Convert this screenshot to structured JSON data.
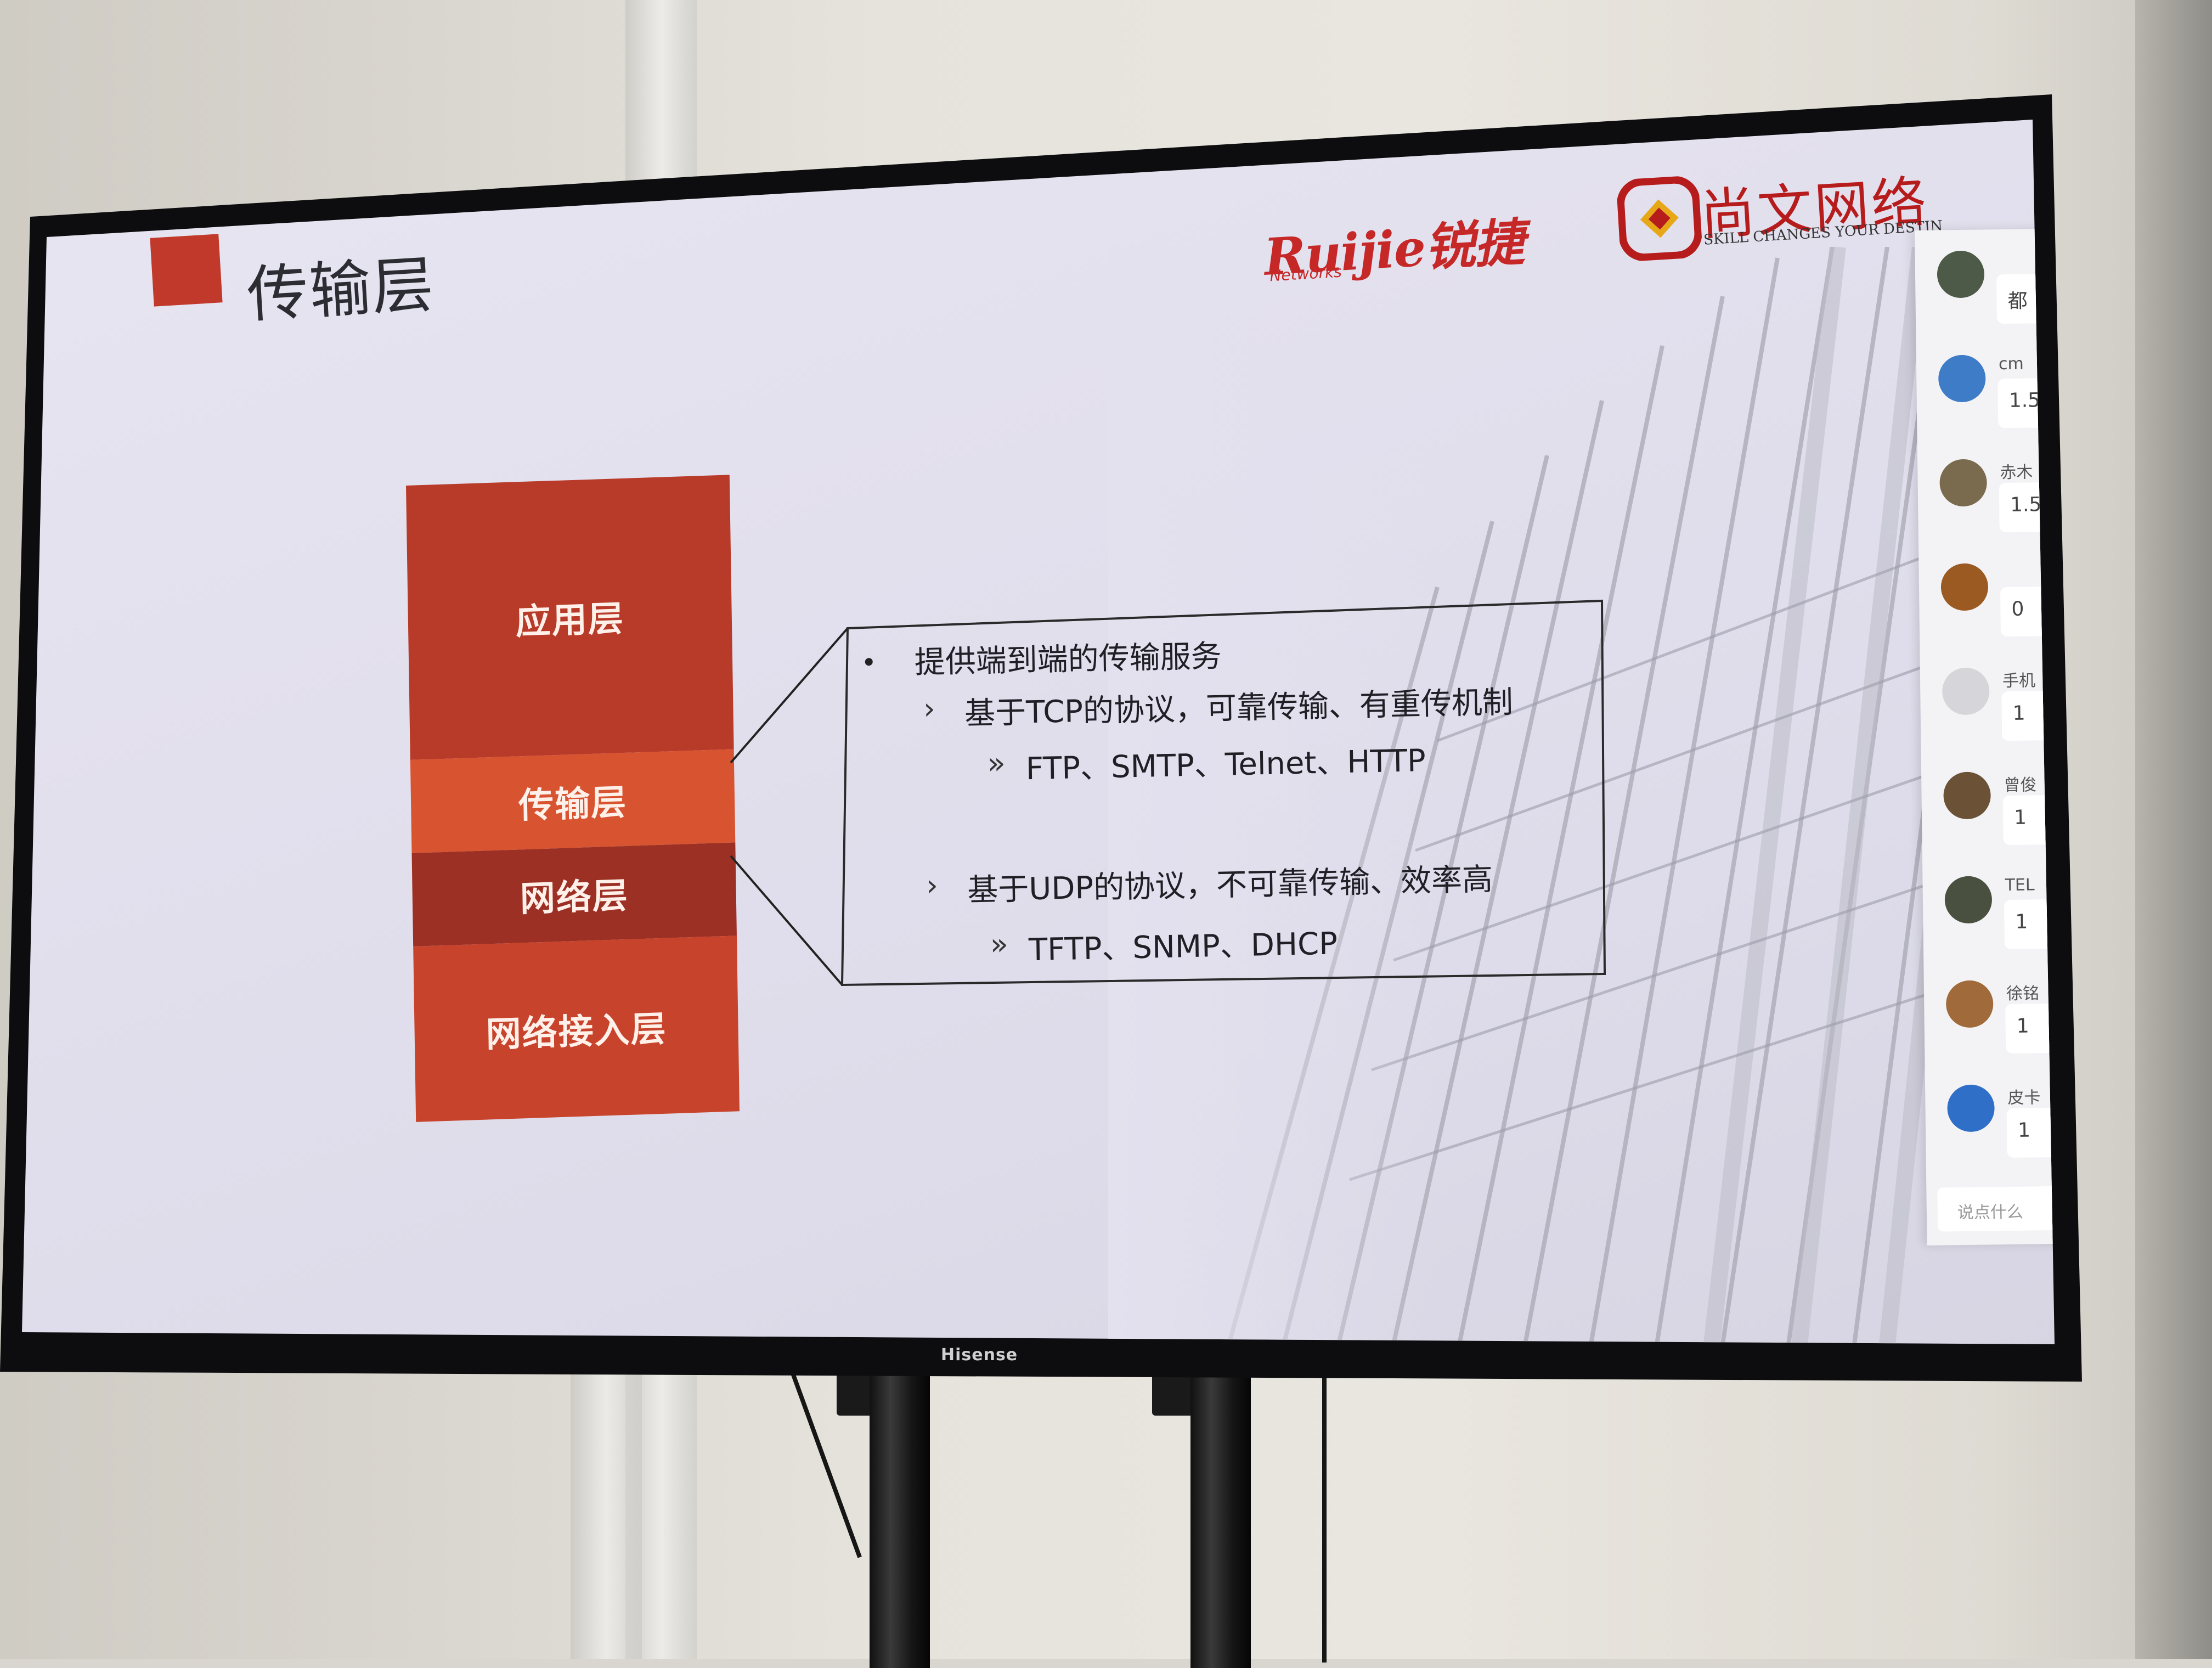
{
  "slide": {
    "title": "传输层",
    "logos": {
      "ruijie_main": "Ruijie锐捷",
      "ruijie_sub": "Networks",
      "shangwen_name": "尚文网络",
      "shangwen_tagline": "SKILL CHANGES YOUR DESTIN"
    },
    "layers": [
      {
        "label": "应用层"
      },
      {
        "label": "传输层"
      },
      {
        "label": "网络层"
      },
      {
        "label": "网络接入层"
      }
    ],
    "info": {
      "bullet": "提供端到端的传输服务",
      "tcp_line": "基于TCP的协议，可靠传输、有重传机制",
      "tcp_examples": "FTP、SMTP、Telnet、HTTP",
      "udp_line": "基于UDP的协议，不可靠传输、效率高",
      "udp_examples": "TFTP、SNMP、DHCP",
      "sub_marker": "›",
      "subsub_marker": "»"
    }
  },
  "chat": {
    "messages": [
      {
        "name": "",
        "text": "都"
      },
      {
        "name": "cm",
        "text": "1.5"
      },
      {
        "name": "赤木",
        "text": "1.5"
      },
      {
        "name": "",
        "text": "0"
      },
      {
        "name": "手机",
        "text": "1"
      },
      {
        "name": "曾俊",
        "text": "1"
      },
      {
        "name": "TEL",
        "text": "1"
      },
      {
        "name": "徐铭",
        "text": "1"
      },
      {
        "name": "皮卡",
        "text": "1"
      }
    ],
    "input_placeholder": "说点什么"
  },
  "tv": {
    "brand": "Hisense"
  },
  "colors": {
    "accent_red": "#c0392b",
    "layer_app": "#b83a28",
    "layer_transport": "#d8532f",
    "layer_network": "#9c3024",
    "layer_access": "#c8432b"
  }
}
